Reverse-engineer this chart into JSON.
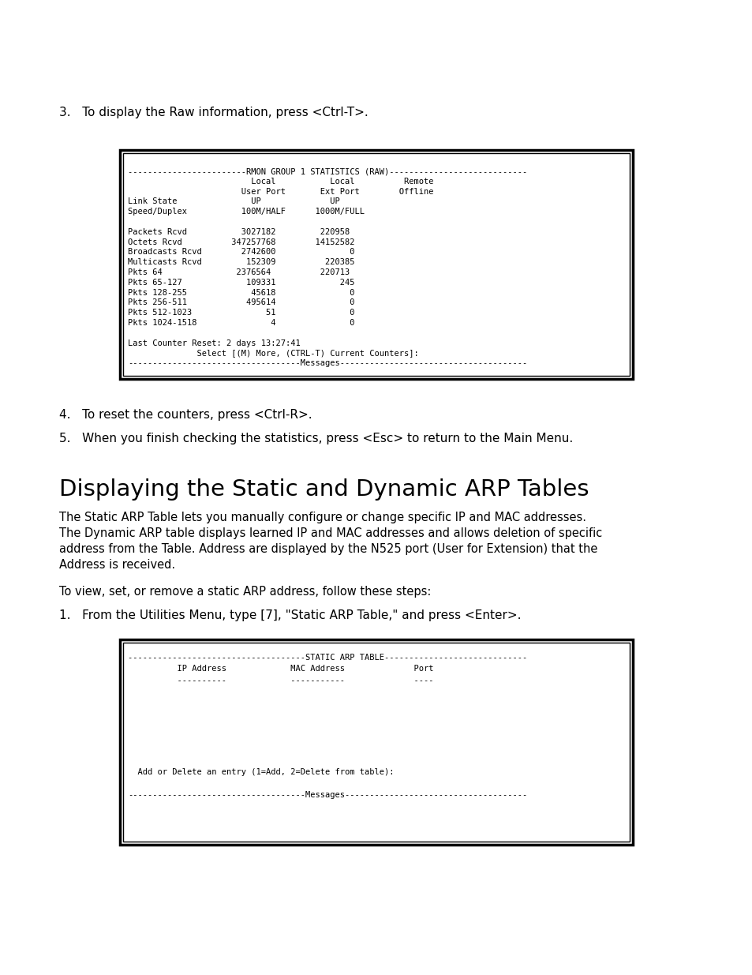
{
  "bg_color": "#ffffff",
  "text_color": "#000000",
  "box1_lines": [
    "------------------------RMON GROUP 1 STATISTICS (RAW)----------------------------",
    "                         Local           Local          Remote",
    "                       User Port       Ext Port        Offline",
    "Link State               UP              UP",
    "Speed/Duplex           100M/HALF      1000M/FULL",
    "",
    "Packets Rcvd           3027182         220958",
    "Octets Rcvd          347257768        14152582",
    "Broadcasts Rcvd        2742600               0",
    "Multicasts Rcvd         152309          220385",
    "Pkts 64               2376564          220713",
    "Pkts 65-127             109331             245",
    "Pkts 128-255             45618               0",
    "Pkts 256-511            495614               0",
    "Pkts 512-1023               51               0",
    "Pkts 1024-1518               4               0",
    "",
    "Last Counter Reset: 2 days 13:27:41",
    "              Select [(M) More, (CTRL-T) Current Counters]:",
    "-----------------------------------Messages--------------------------------------"
  ],
  "box2_lines": [
    "------------------------------------STATIC ARP TABLE-----------------------------",
    "          IP Address             MAC Address              Port",
    "          ----------             -----------              ----",
    "",
    "",
    "",
    "",
    "",
    "",
    "",
    "  Add or Delete an entry (1=Add, 2=Delete from table):",
    "",
    "------------------------------------Messages-------------------------------------"
  ],
  "section_title": "Displaying the Static and Dynamic ARP Tables",
  "para1_lines": [
    "The Static ARP Table lets you manually configure or change specific IP and MAC addresses.",
    "The Dynamic ARP table displays learned IP and MAC addresses and allows deletion of specific",
    "address from the Table. Address are displayed by the N525 port (User for Extension) that the",
    "Address is received."
  ],
  "para2": "To view, set, or remove a static ARP address, follow these steps:"
}
